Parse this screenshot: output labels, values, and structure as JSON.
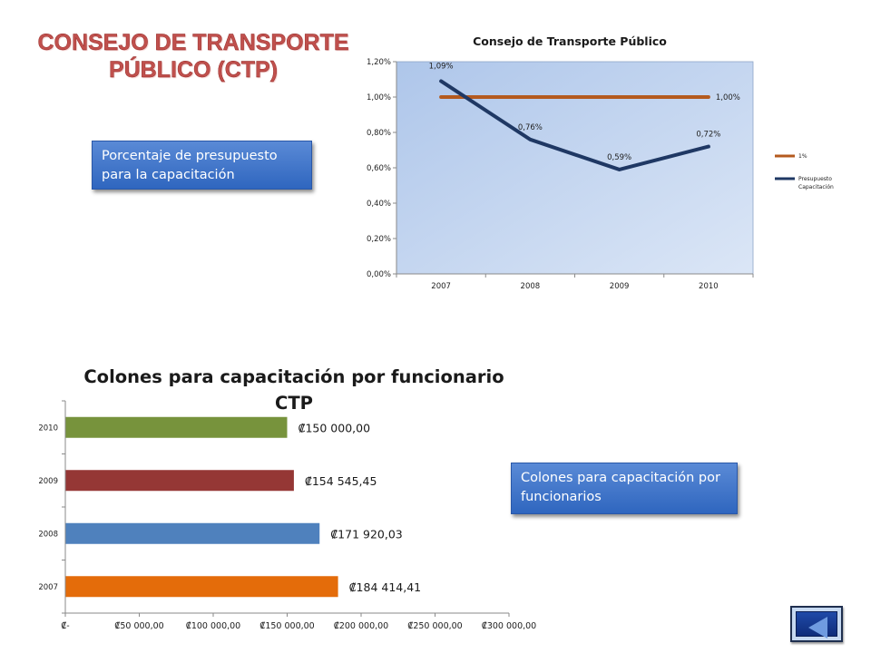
{
  "slide_title_line1": "CONSEJO DE TRANSPORTE",
  "slide_title_line2": "PÚBLICO (CTP)",
  "callout_budget_percent": "Porcentaje de presupuesto para la capacitación",
  "callout_colones": "Colones para capacitación por funcionarios",
  "back_button": {
    "icon": "back-arrow-icon"
  },
  "chart_data": [
    {
      "type": "line",
      "title": "Consejo de Transporte Público",
      "categories": [
        "2007",
        "2008",
        "2009",
        "2010"
      ],
      "ylim": [
        0,
        0.012
      ],
      "yticks": [
        0,
        0.002,
        0.004,
        0.006,
        0.008,
        0.01,
        0.012
      ],
      "ytick_labels": [
        "0,00%",
        "0,20%",
        "0,40%",
        "0,60%",
        "0,80%",
        "1,00%",
        "1,20%"
      ],
      "grid": false,
      "legend": "right",
      "series": [
        {
          "name": "1%",
          "values": [
            0.01,
            0.01,
            0.01,
            0.01
          ],
          "labels": [
            "",
            "",
            "",
            "1,00%"
          ],
          "color": "#b45a1e"
        },
        {
          "name": "Presupuesto Capacitación",
          "values": [
            0.0109,
            0.0076,
            0.0059,
            0.0072
          ],
          "labels": [
            "1,09%",
            "0,76%",
            "0,59%",
            "0,72%"
          ],
          "color": "#1f3864"
        }
      ],
      "plot_background": "#b8cdec"
    },
    {
      "type": "bar",
      "orientation": "horizontal",
      "title": "Colones para capacitación por funcionario CTP",
      "categories": [
        "2007",
        "2008",
        "2009",
        "2010"
      ],
      "values": [
        184414.41,
        171920.03,
        154545.45,
        150000.0
      ],
      "labels": [
        "₡184 414,41",
        "₡171 920,03",
        "₡154 545,45",
        "₡150 000,00"
      ],
      "colors": [
        "#e46c0a",
        "#4f81bd",
        "#953735",
        "#77933c"
      ],
      "xlim": [
        0,
        300000
      ],
      "xticks": [
        0,
        50000,
        100000,
        150000,
        200000,
        250000,
        300000
      ],
      "xtick_labels": [
        "₡-",
        "₡50 000,00",
        "₡100 000,00",
        "₡150 000,00",
        "₡200 000,00",
        "₡250 000,00",
        "₡300 000,00"
      ],
      "grid": false
    }
  ]
}
